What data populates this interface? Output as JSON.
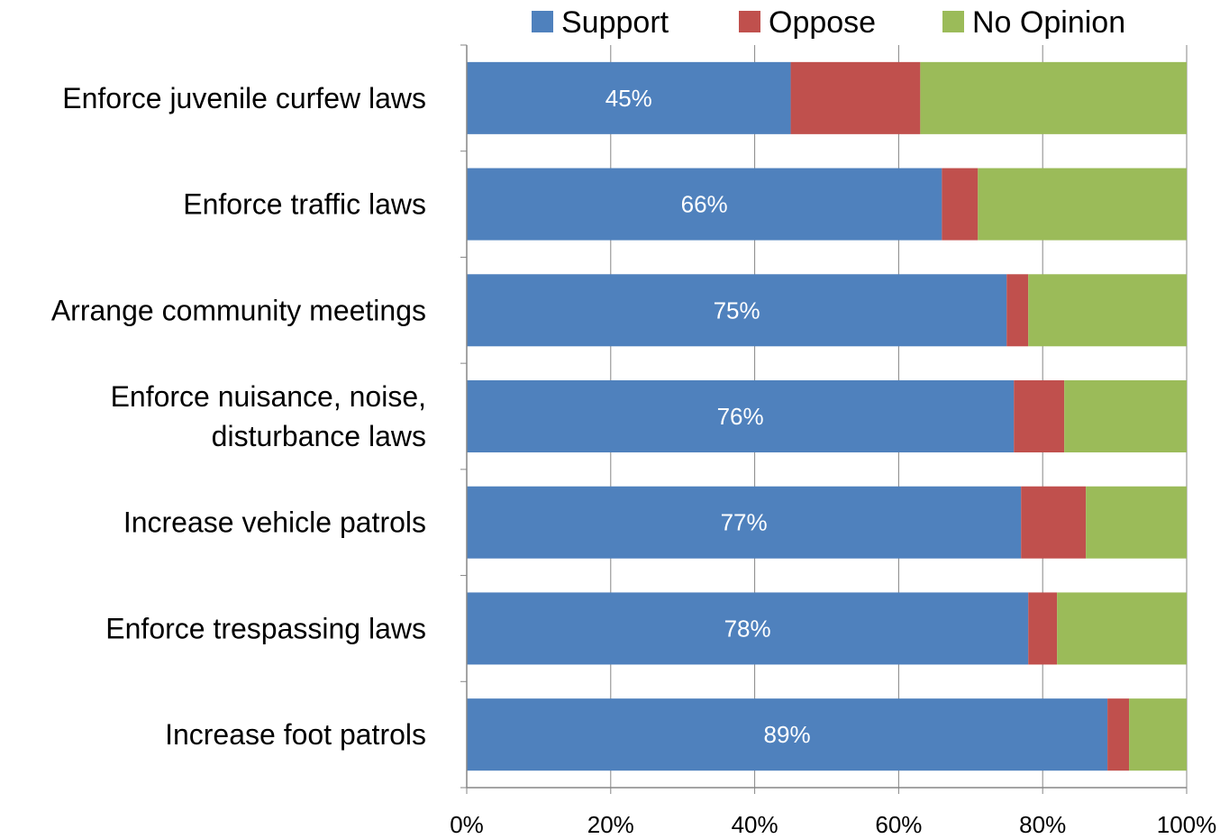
{
  "chart_data": {
    "type": "bar",
    "orientation": "horizontal",
    "stacked": true,
    "percent_stacked": true,
    "categories": [
      "Enforce juvenile curfew laws",
      "Enforce traffic laws",
      "Arrange community meetings",
      "Enforce nuisance, noise, disturbance laws",
      "Increase vehicle patrols",
      "Enforce trespassing laws",
      "Increase foot patrols"
    ],
    "category_lines": [
      [
        "Enforce juvenile curfew laws"
      ],
      [
        "Enforce traffic laws"
      ],
      [
        "Arrange community meetings"
      ],
      [
        "Enforce nuisance, noise,",
        "disturbance laws"
      ],
      [
        "Increase vehicle patrols"
      ],
      [
        "Enforce trespassing laws"
      ],
      [
        "Increase foot patrols"
      ]
    ],
    "series": [
      {
        "name": "Support",
        "color": "#4F81BD",
        "values": [
          45,
          66,
          75,
          76,
          77,
          78,
          89
        ],
        "labels": [
          "45%",
          "66%",
          "75%",
          "76%",
          "77%",
          "78%",
          "89%"
        ]
      },
      {
        "name": "Oppose",
        "color": "#C0504D",
        "values": [
          18,
          5,
          3,
          7,
          9,
          4,
          3
        ]
      },
      {
        "name": "No Opinion",
        "color": "#9BBB59",
        "values": [
          37,
          29,
          22,
          17,
          14,
          18,
          8
        ]
      }
    ],
    "xlim": [
      0,
      100
    ],
    "xticks": [
      "0%",
      "20%",
      "40%",
      "60%",
      "80%",
      "100%"
    ],
    "grid": true,
    "legend_position": "top",
    "title": "",
    "xlabel": "",
    "ylabel": ""
  }
}
